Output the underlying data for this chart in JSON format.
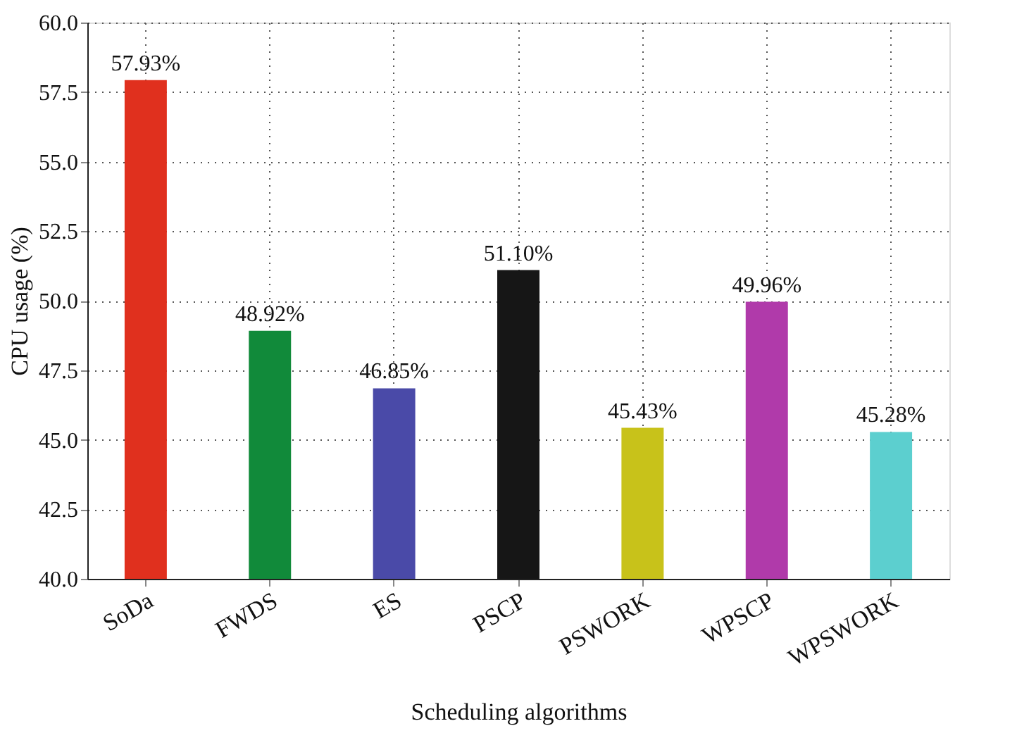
{
  "chart_data": {
    "type": "bar",
    "xlabel": "Scheduling algorithms",
    "ylabel": "CPU usage (%)",
    "categories": [
      "SoDa",
      "FWDS",
      "ES",
      "PSCP",
      "PSWORK",
      "WPSCP",
      "WPSWORK"
    ],
    "values": [
      57.93,
      48.92,
      46.85,
      51.1,
      45.43,
      49.96,
      45.28
    ],
    "colors": [
      "#e0301e",
      "#118a3a",
      "#4a4aa8",
      "#161616",
      "#c8c21a",
      "#b03aaa",
      "#5ccfcf"
    ],
    "value_labels": [
      "57.93%",
      "48.92%",
      "46.85%",
      "51.10%",
      "45.43%",
      "49.96%",
      "45.28%"
    ],
    "ylim": [
      40,
      60
    ],
    "yticks": [
      {
        "value": 40,
        "label": "40.0"
      },
      42.5,
      {
        "value": 45,
        "label": "45.0"
      },
      47.5,
      {
        "value": 50,
        "label": "50.0"
      },
      52.5,
      {
        "value": 55,
        "label": "55.0"
      },
      57.5,
      {
        "value": 60,
        "label": "60.0"
      }
    ],
    "grid": true
  }
}
